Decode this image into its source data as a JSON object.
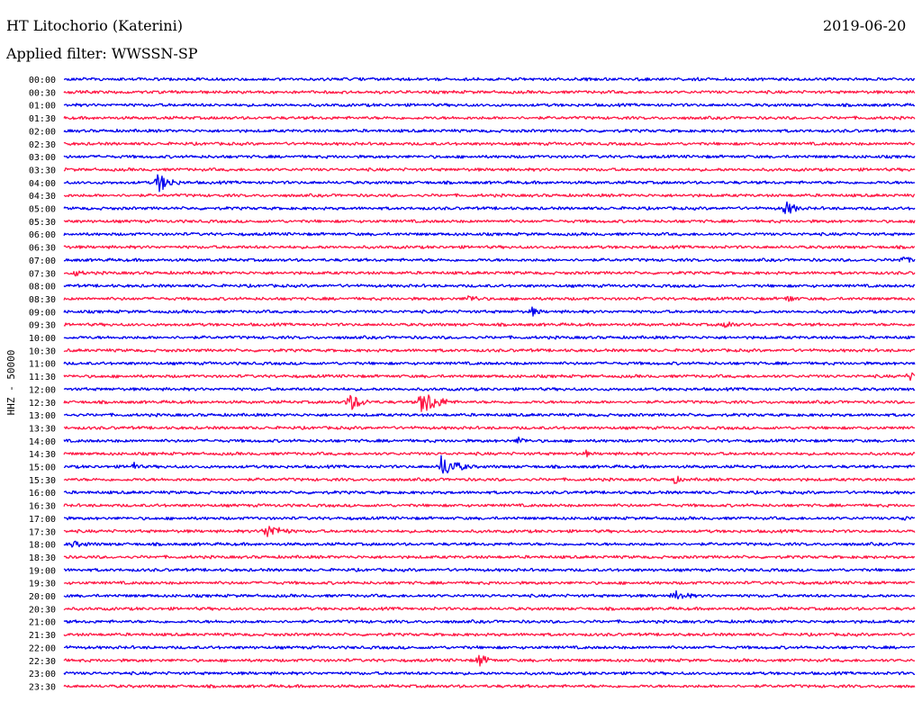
{
  "header": {
    "station": "HT Litochorio (Katerini)",
    "date": "2019-06-20",
    "filter": "Applied filter: WWSSN-SP"
  },
  "chart_data": {
    "type": "line",
    "title": "HT Litochorio (Katerini)",
    "subtitle": "Applied filter: WWSSN-SP",
    "date": "2019-06-20",
    "ylabel": "HHZ - 50000",
    "colors": [
      "#0000ee",
      "#ff1744"
    ],
    "rows": [
      "00:00",
      "00:30",
      "01:00",
      "01:30",
      "02:00",
      "02:30",
      "03:00",
      "03:30",
      "04:00",
      "04:30",
      "05:00",
      "05:30",
      "06:00",
      "06:30",
      "07:00",
      "07:30",
      "08:00",
      "08:30",
      "09:00",
      "09:30",
      "10:00",
      "10:30",
      "11:00",
      "11:30",
      "12:00",
      "12:30",
      "13:00",
      "13:30",
      "14:00",
      "14:30",
      "15:00",
      "15:30",
      "16:00",
      "16:30",
      "17:00",
      "17:30",
      "18:00",
      "18:30",
      "19:00",
      "19:30",
      "20:00",
      "20:30",
      "21:00",
      "21:30",
      "22:00",
      "22:30",
      "23:00",
      "23:30"
    ],
    "events": [
      {
        "row": "04:00",
        "minute": 3.3,
        "amplitude": 12,
        "duration": 1.2
      },
      {
        "row": "05:00",
        "minute": 25.4,
        "amplitude": 10,
        "duration": 1.0
      },
      {
        "row": "07:00",
        "minute": 29.5,
        "amplitude": 6,
        "duration": 1.0
      },
      {
        "row": "07:30",
        "minute": 0.3,
        "amplitude": 5,
        "duration": 1.2
      },
      {
        "row": "08:30",
        "minute": 14.2,
        "amplitude": 5,
        "duration": 1.5
      },
      {
        "row": "08:30",
        "minute": 25.5,
        "amplitude": 6,
        "duration": 0.8
      },
      {
        "row": "09:00",
        "minute": 16.5,
        "amplitude": 6,
        "duration": 0.8
      },
      {
        "row": "09:30",
        "minute": 23.3,
        "amplitude": 6,
        "duration": 1.0
      },
      {
        "row": "11:30",
        "minute": 29.8,
        "amplitude": 7,
        "duration": 0.5
      },
      {
        "row": "12:30",
        "minute": 10.0,
        "amplitude": 12,
        "duration": 1.2
      },
      {
        "row": "12:30",
        "minute": 12.6,
        "amplitude": 16,
        "duration": 1.5
      },
      {
        "row": "14:00",
        "minute": 16.0,
        "amplitude": 6,
        "duration": 0.8
      },
      {
        "row": "14:30",
        "minute": 18.4,
        "amplitude": 5,
        "duration": 0.4
      },
      {
        "row": "15:00",
        "minute": 2.4,
        "amplitude": 7,
        "duration": 0.6
      },
      {
        "row": "15:00",
        "minute": 13.3,
        "amplitude": 13,
        "duration": 1.5
      },
      {
        "row": "15:30",
        "minute": 21.5,
        "amplitude": 6,
        "duration": 0.8
      },
      {
        "row": "17:00",
        "minute": 29.6,
        "amplitude": 6,
        "duration": 0.4
      },
      {
        "row": "17:30",
        "minute": 7.1,
        "amplitude": 10,
        "duration": 1.5
      },
      {
        "row": "18:00",
        "minute": 0.2,
        "amplitude": 4,
        "duration": 3.0
      },
      {
        "row": "20:00",
        "minute": 21.5,
        "amplitude": 7,
        "duration": 1.5
      },
      {
        "row": "22:30",
        "minute": 14.6,
        "amplitude": 9,
        "duration": 0.9
      }
    ]
  }
}
